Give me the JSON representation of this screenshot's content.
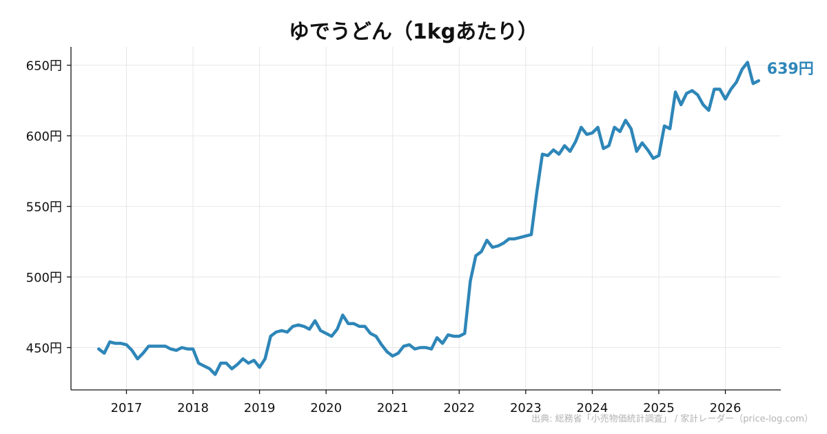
{
  "chart_data": {
    "type": "line",
    "title": "ゆでうどん（1kgあたり）",
    "xlabel": "",
    "ylabel": "",
    "xlim": [
      "2016-03",
      "2026-11"
    ],
    "ylim": [
      420,
      663
    ],
    "grid": true,
    "legend": "none",
    "y_ticks": [
      450,
      500,
      550,
      600,
      650
    ],
    "y_tick_labels": [
      "450円",
      "500円",
      "550円",
      "600円",
      "650円"
    ],
    "x_ticks": [
      "2017-01",
      "2018-01",
      "2019-01",
      "2020-01",
      "2021-01",
      "2022-01",
      "2023-01",
      "2024-01",
      "2025-01",
      "2026-01"
    ],
    "x_tick_labels": [
      "2017",
      "2018",
      "2019",
      "2020",
      "2021",
      "2022",
      "2023",
      "2024",
      "2025",
      "2026"
    ],
    "series": [
      {
        "color": "#2e86b8",
        "x": [
          "2016-08",
          "2016-09",
          "2016-10",
          "2016-11",
          "2016-12",
          "2017-01",
          "2017-02",
          "2017-03",
          "2017-04",
          "2017-05",
          "2017-06",
          "2017-07",
          "2017-08",
          "2017-09",
          "2017-10",
          "2017-11",
          "2017-12",
          "2018-01",
          "2018-02",
          "2018-03",
          "2018-04",
          "2018-05",
          "2018-06",
          "2018-07",
          "2018-08",
          "2018-09",
          "2018-10",
          "2018-11",
          "2018-12",
          "2019-01",
          "2019-02",
          "2019-03",
          "2019-04",
          "2019-05",
          "2019-06",
          "2019-07",
          "2019-08",
          "2019-09",
          "2019-10",
          "2019-11",
          "2019-12",
          "2020-01",
          "2020-02",
          "2020-03",
          "2020-04",
          "2020-05",
          "2020-06",
          "2020-07",
          "2020-08",
          "2020-09",
          "2020-10",
          "2020-11",
          "2020-12",
          "2021-01",
          "2021-02",
          "2021-03",
          "2021-04",
          "2021-05",
          "2021-06",
          "2021-07",
          "2021-08",
          "2021-09",
          "2021-10",
          "2021-11",
          "2021-12",
          "2022-01",
          "2022-02",
          "2022-03",
          "2022-04",
          "2022-05",
          "2022-06",
          "2022-07",
          "2022-08",
          "2022-09",
          "2022-10",
          "2022-11",
          "2022-12",
          "2023-01",
          "2023-02",
          "2023-03",
          "2023-04",
          "2023-05",
          "2023-06",
          "2023-07",
          "2023-08",
          "2023-09",
          "2023-10",
          "2023-11",
          "2023-12",
          "2024-01",
          "2024-02",
          "2024-03",
          "2024-04",
          "2024-05",
          "2024-06",
          "2024-07",
          "2024-08",
          "2024-09",
          "2024-10",
          "2024-11",
          "2024-12",
          "2025-01",
          "2025-02",
          "2025-03",
          "2025-04",
          "2025-05",
          "2025-06",
          "2025-07",
          "2025-08",
          "2025-09",
          "2025-10",
          "2025-11",
          "2025-12",
          "2026-01",
          "2026-02",
          "2026-03",
          "2026-04",
          "2026-05",
          "2026-06",
          "2026-07"
        ],
        "values": [
          449,
          446,
          454,
          453,
          453,
          452,
          448,
          442,
          446,
          451,
          451,
          451,
          451,
          449,
          448,
          450,
          449,
          449,
          439,
          437,
          435,
          431,
          439,
          439,
          435,
          438,
          442,
          439,
          441,
          436,
          442,
          458,
          461,
          462,
          461,
          465,
          466,
          465,
          463,
          469,
          462,
          460,
          458,
          463,
          473,
          467,
          467,
          465,
          465,
          460,
          458,
          452,
          447,
          444,
          446,
          451,
          452,
          449,
          450,
          450,
          449,
          457,
          453,
          459,
          458,
          458,
          460,
          497,
          515,
          518,
          526,
          521,
          522,
          524,
          527,
          527,
          528,
          529,
          530,
          560,
          587,
          586,
          590,
          587,
          593,
          589,
          596,
          606,
          601,
          602,
          606,
          591,
          593,
          606,
          603,
          611,
          605,
          589,
          595,
          590,
          584,
          586,
          607,
          605,
          631,
          622,
          630,
          632,
          629,
          622,
          618,
          633,
          633,
          626,
          633,
          638,
          647,
          652,
          637,
          639
        ]
      }
    ],
    "end_label": "639円",
    "annotations": [
      "出典: 総務省「小売物価統計調査」 / 家計レーダー（price-log.com）"
    ]
  }
}
